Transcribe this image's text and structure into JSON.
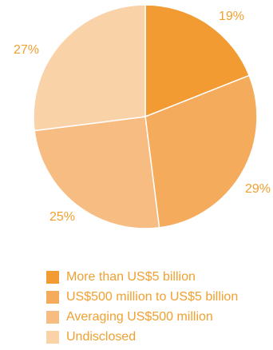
{
  "chart_data": {
    "type": "pie",
    "categories": [
      "More than US$5 billion",
      "US$500 million to US$5 billion",
      "Averaging US$500 million",
      "Undisclosed"
    ],
    "values": [
      19,
      29,
      25,
      27
    ],
    "value_labels": [
      "19%",
      "29%",
      "25%",
      "27%"
    ],
    "colors": [
      "#f29b33",
      "#f5ab5c",
      "#f7bc82",
      "#f9d2a8"
    ],
    "legend": {
      "placement": "bottom"
    }
  }
}
